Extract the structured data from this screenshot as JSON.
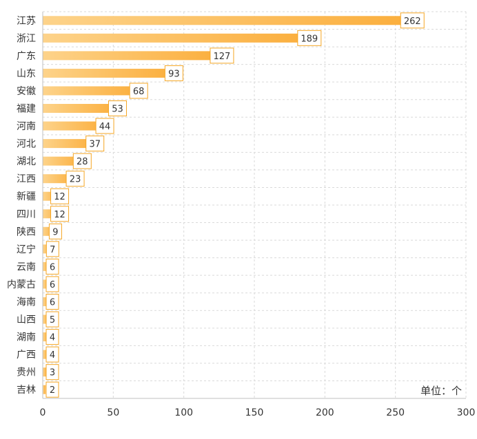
{
  "chart_data": {
    "type": "bar",
    "orientation": "horizontal",
    "categories": [
      "江苏",
      "浙江",
      "广东",
      "山东",
      "安徽",
      "福建",
      "河南",
      "河北",
      "湖北",
      "江西",
      "新疆",
      "四川",
      "陕西",
      "辽宁",
      "云南",
      "内蒙古",
      "海南",
      "山西",
      "湖南",
      "广西",
      "贵州",
      "吉林"
    ],
    "values": [
      262,
      189,
      127,
      93,
      68,
      53,
      44,
      37,
      28,
      23,
      12,
      12,
      9,
      7,
      6,
      6,
      6,
      5,
      4,
      4,
      3,
      2
    ],
    "xlim": [
      0,
      300
    ],
    "xticks": [
      "0",
      "50",
      "100",
      "150",
      "200",
      "250",
      "300"
    ],
    "unit_label": "单位：个",
    "grid": true,
    "bar_color_start": "#fdd38a",
    "bar_color_end": "#fbae3c",
    "label_border_color": "#f5a623"
  }
}
